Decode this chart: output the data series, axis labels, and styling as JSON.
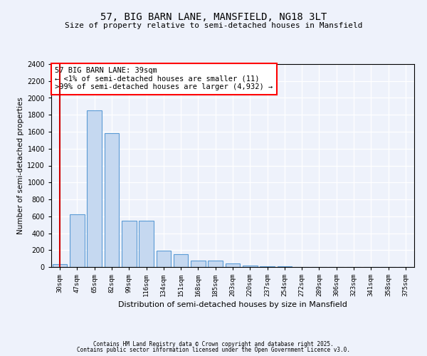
{
  "title1": "57, BIG BARN LANE, MANSFIELD, NG18 3LT",
  "title2": "Size of property relative to semi-detached houses in Mansfield",
  "xlabel": "Distribution of semi-detached houses by size in Mansfield",
  "ylabel": "Number of semi-detached properties",
  "categories": [
    "30sqm",
    "47sqm",
    "65sqm",
    "82sqm",
    "99sqm",
    "116sqm",
    "134sqm",
    "151sqm",
    "168sqm",
    "185sqm",
    "203sqm",
    "220sqm",
    "237sqm",
    "254sqm",
    "272sqm",
    "289sqm",
    "306sqm",
    "323sqm",
    "341sqm",
    "358sqm",
    "375sqm"
  ],
  "values": [
    30,
    620,
    1850,
    1580,
    545,
    545,
    190,
    150,
    75,
    75,
    40,
    20,
    10,
    5,
    0,
    0,
    0,
    0,
    0,
    0,
    0
  ],
  "bar_color": "#c5d8f0",
  "bar_edge_color": "#5b9bd5",
  "highlight_color": "#cc0000",
  "ylim": [
    0,
    2400
  ],
  "yticks": [
    0,
    200,
    400,
    600,
    800,
    1000,
    1200,
    1400,
    1600,
    1800,
    2000,
    2200,
    2400
  ],
  "annotation_line1": "57 BIG BARN LANE: 39sqm",
  "annotation_line2": "← <1% of semi-detached houses are smaller (11)",
  "annotation_line3": ">99% of semi-detached houses are larger (4,932) →",
  "footer1": "Contains HM Land Registry data © Crown copyright and database right 2025.",
  "footer2": "Contains public sector information licensed under the Open Government Licence v3.0.",
  "bg_color": "#eef2fb",
  "plot_bg_color": "#eef2fb"
}
